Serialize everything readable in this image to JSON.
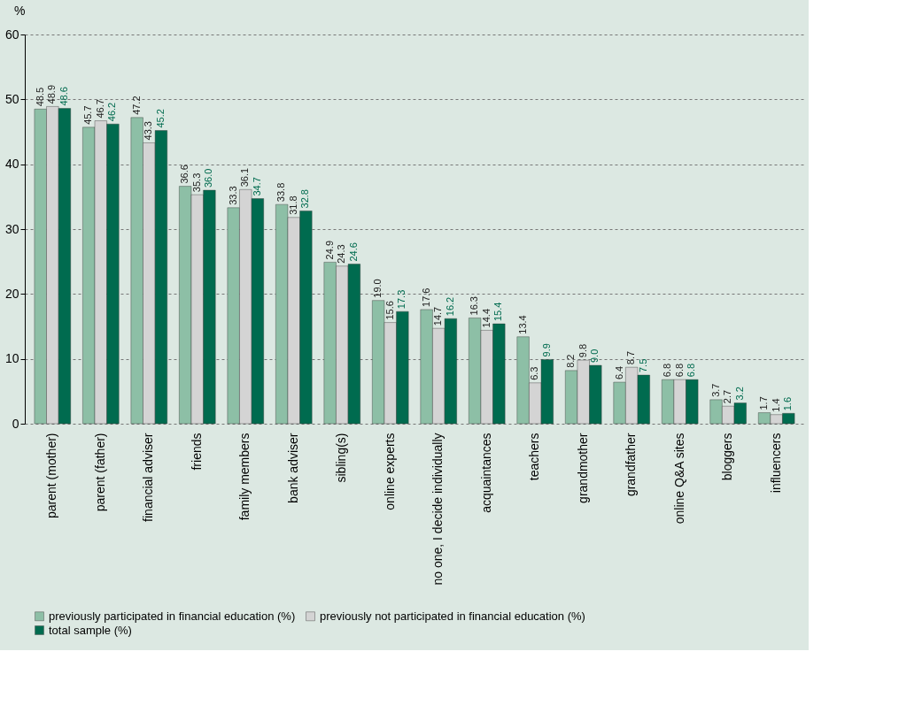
{
  "chart_data": {
    "type": "bar",
    "ylabel": "%",
    "categories": [
      "parent (mother)",
      "parent (father)",
      "financial adviser",
      "friends",
      "family members",
      "bank adviser",
      "sibling(s)",
      "online experts",
      "no one, I decide individually",
      "acquaintances",
      "teachers",
      "grandmother",
      "grandfather",
      "online Q&A sites",
      "bloggers",
      "influencers"
    ],
    "series": [
      {
        "name": "previously participated in financial education (%)",
        "color": "#8dbfa6",
        "values": [
          48.5,
          45.7,
          47.2,
          36.6,
          33.3,
          33.8,
          24.9,
          19.0,
          17.6,
          16.3,
          13.4,
          8.2,
          6.4,
          6.8,
          3.7,
          1.7
        ],
        "value_labels": [
          "48.5",
          "45.7",
          "47.2",
          "36.6",
          "33.3",
          "33.8",
          "24.9",
          "19.0",
          "17.6",
          "16.3",
          "13.4",
          "8.2",
          "6.4",
          "6.8",
          "3.7",
          "1.7"
        ]
      },
      {
        "name": "previously not participated in financial education (%)",
        "color": "#d4d4d4",
        "values": [
          48.9,
          46.7,
          43.3,
          35.3,
          36.1,
          31.8,
          24.3,
          15.6,
          14.7,
          14.4,
          6.3,
          9.8,
          8.7,
          6.8,
          2.7,
          1.4
        ],
        "value_labels": [
          "48.9",
          "46.7",
          "43.3",
          "35.3",
          "36.1",
          "31.8",
          "24.3",
          "15.6",
          "14.7",
          "14.4",
          "6.3",
          "9.8",
          "8.7",
          "6.8",
          "2.7",
          "1.4"
        ]
      },
      {
        "name": "total sample (%)",
        "color": "#006b4f",
        "values": [
          48.6,
          46.2,
          45.2,
          36.0,
          34.7,
          32.8,
          24.6,
          17.3,
          16.2,
          15.4,
          9.9,
          9.0,
          7.5,
          6.8,
          3.2,
          1.6
        ],
        "value_labels": [
          "48.6",
          "46.2",
          "45.2",
          "36.0",
          "34.7",
          "32.8",
          "24.6",
          "17.3",
          "16.2",
          "15.4",
          "9.9",
          "9.0",
          "7.5",
          "6.8",
          "3.2",
          "1.6"
        ]
      }
    ],
    "ylim": [
      0,
      60
    ],
    "yticks": [
      0,
      10,
      20,
      30,
      40,
      50,
      60
    ],
    "grid": "y",
    "legend": "bottom"
  }
}
